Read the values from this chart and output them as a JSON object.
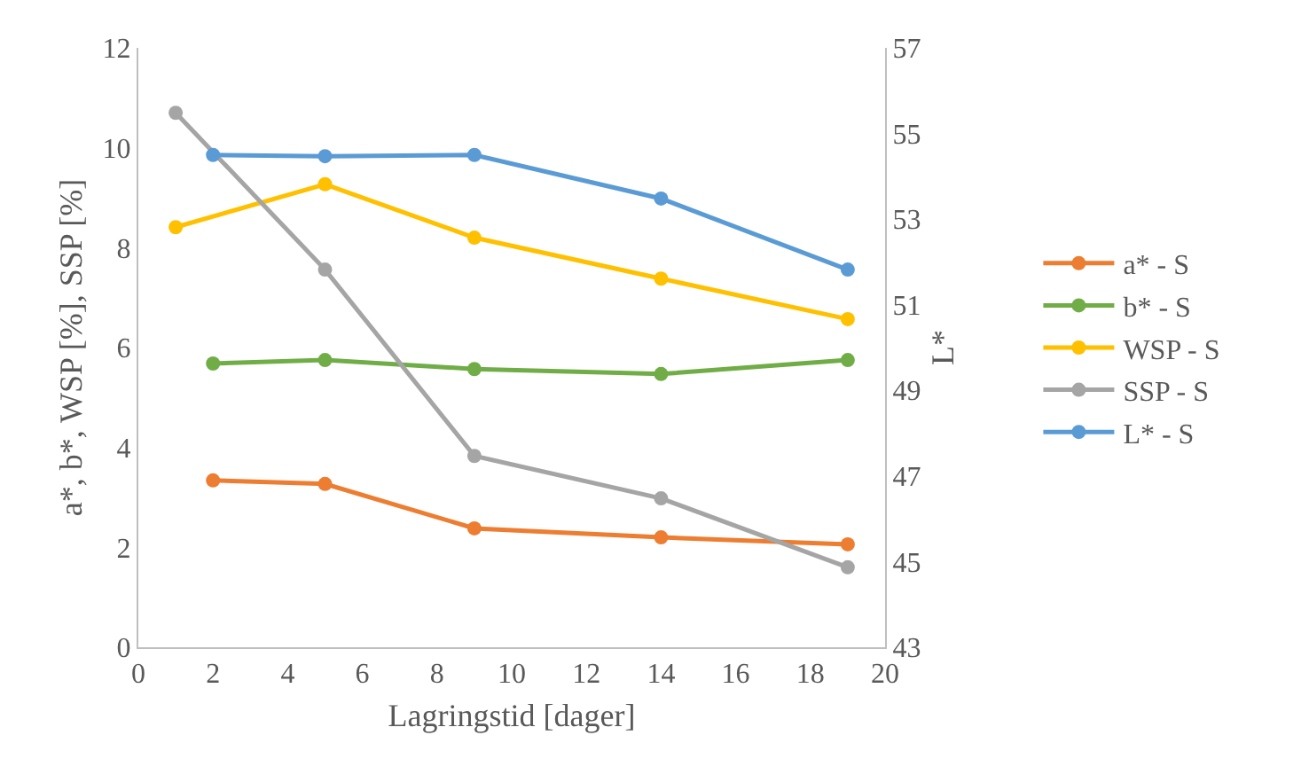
{
  "chart_data": {
    "type": "line",
    "xlabel": "Lagringstid [dager]",
    "ylabel": "a*, b*, WSP [%], SSP [%]",
    "y2label": "L*",
    "xlim": [
      0,
      20
    ],
    "xticks": [
      0,
      2,
      4,
      6,
      8,
      10,
      12,
      14,
      16,
      18,
      20
    ],
    "ylim": [
      0,
      12
    ],
    "yticks": [
      0,
      2,
      4,
      6,
      8,
      10,
      12
    ],
    "y2lim": [
      43,
      57
    ],
    "y2ticks": [
      43,
      45,
      47,
      49,
      51,
      53,
      55,
      57
    ],
    "legend": "right",
    "marker": "circle",
    "line_style": "solid",
    "series": [
      {
        "name": "a* - S",
        "color": "#ed7d31",
        "x": [
          2,
          5,
          9,
          14,
          19
        ],
        "values": [
          3.34,
          3.27,
          2.38,
          2.2,
          2.06
        ]
      },
      {
        "name": "b* - S",
        "color": "#70ad47",
        "x": [
          2,
          5,
          9,
          14,
          19
        ],
        "values": [
          5.68,
          5.75,
          5.57,
          5.47,
          5.75
        ]
      },
      {
        "name": "WSP - S",
        "color": "#ffc000",
        "x": [
          1,
          5,
          9,
          14,
          19
        ],
        "values": [
          8.41,
          9.27,
          8.2,
          7.38,
          6.57
        ]
      },
      {
        "name": "SSP - S",
        "color": "#a5a5a5",
        "x": [
          1,
          5,
          9,
          14,
          19
        ],
        "values": [
          10.7,
          7.56,
          3.83,
          2.98,
          1.6
        ]
      },
      {
        "name": "L* - S",
        "color": "#5b9bd5",
        "axis": "y2",
        "x": [
          2,
          5,
          9,
          14,
          19
        ],
        "values": [
          54.5,
          54.47,
          54.5,
          53.48,
          51.82
        ]
      }
    ]
  }
}
